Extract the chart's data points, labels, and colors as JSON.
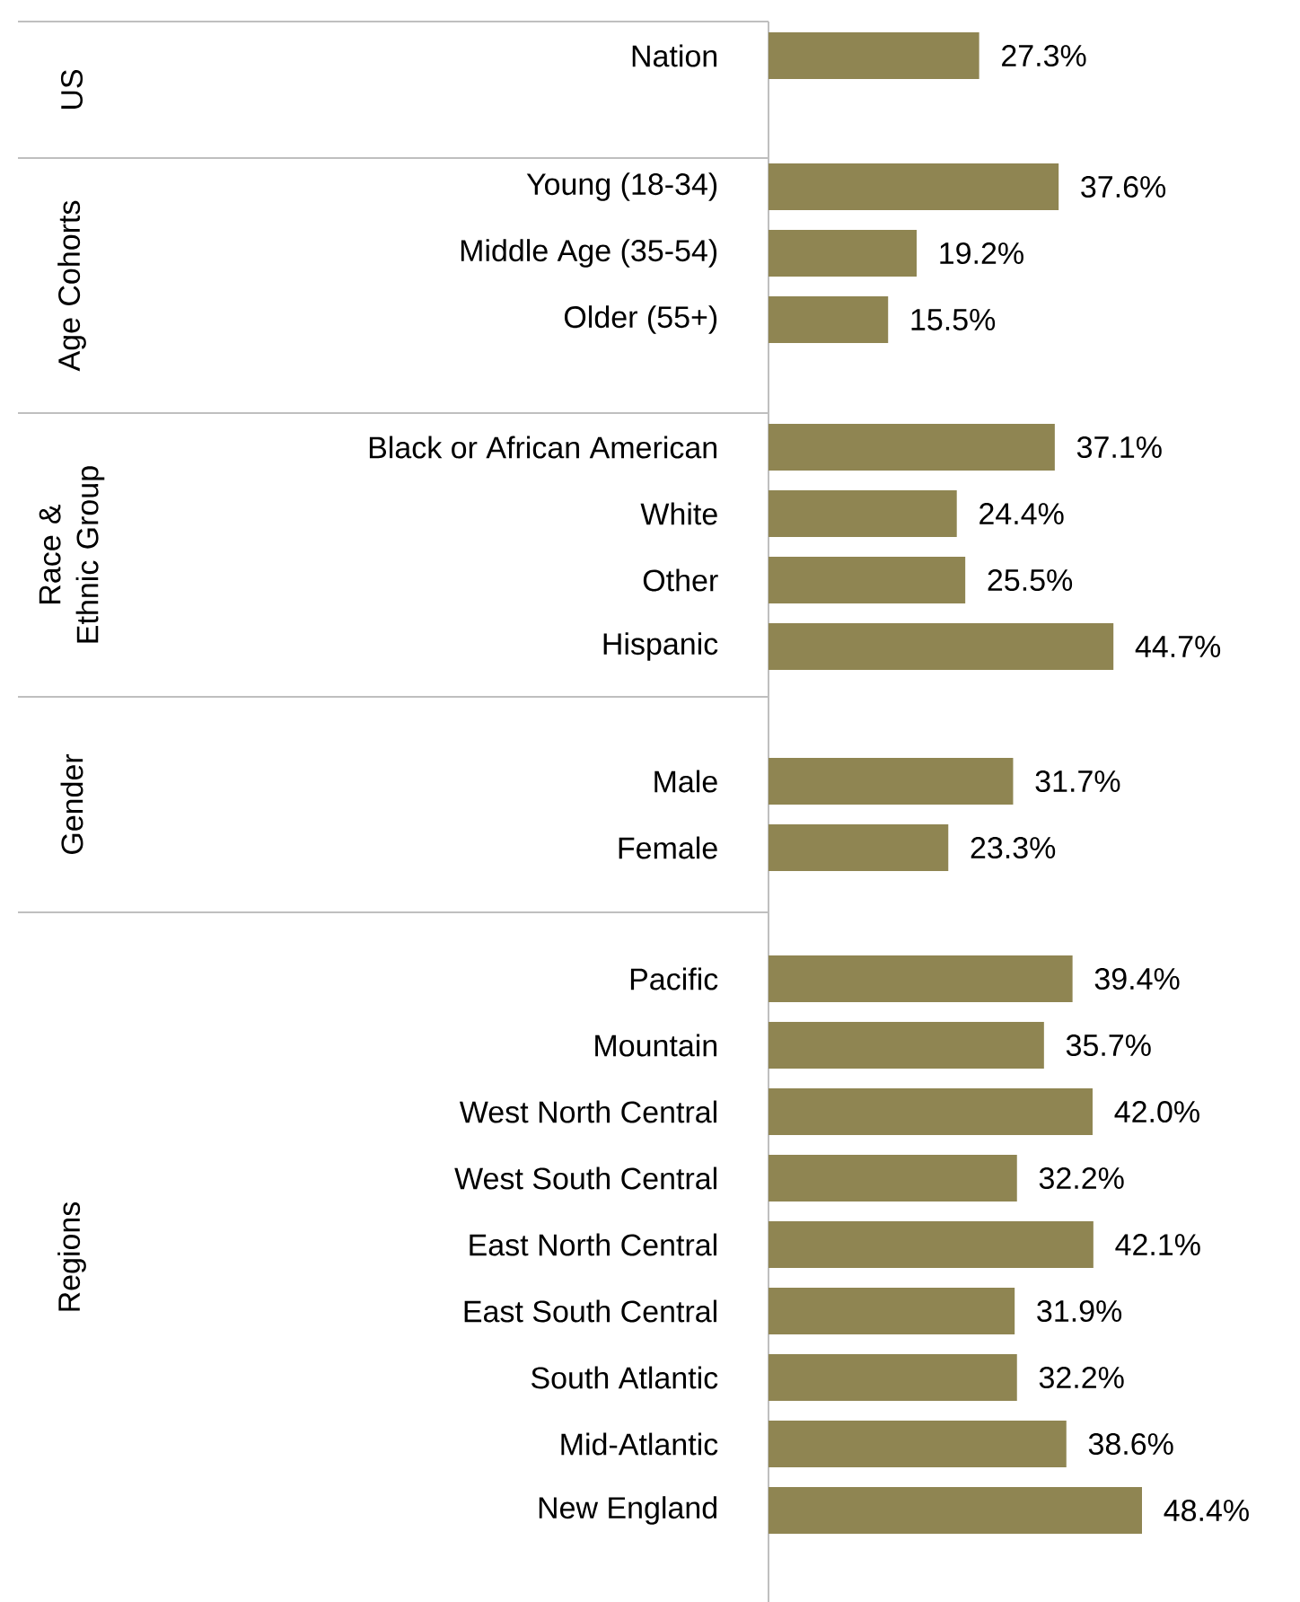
{
  "chart_data": [
    {
      "type": "bar",
      "orientation": "horizontal",
      "ylabel": "US",
      "categories": [
        "Nation"
      ],
      "values": [
        27.3
      ],
      "value_labels": [
        "27.3%"
      ],
      "color": "#8f8552"
    },
    {
      "type": "bar",
      "orientation": "horizontal",
      "ylabel": "Age Cohorts",
      "categories": [
        "Young (18-34)",
        "Middle Age (35-54)",
        "Older (55+)"
      ],
      "values": [
        37.6,
        19.2,
        15.5
      ],
      "value_labels": [
        "37.6%",
        "19.2%",
        "15.5%"
      ],
      "color": "#8f8552"
    },
    {
      "type": "bar",
      "orientation": "horizontal",
      "ylabel": "Race & Ethnic Group",
      "categories": [
        "Black or African American",
        "White",
        "Other",
        "Hispanic"
      ],
      "values": [
        37.1,
        24.4,
        25.5,
        44.7
      ],
      "value_labels": [
        "37.1%",
        "24.4%",
        "25.5%",
        "44.7%"
      ],
      "color": "#8f8552"
    },
    {
      "type": "bar",
      "orientation": "horizontal",
      "ylabel": "Gender",
      "categories": [
        "Male",
        "Female"
      ],
      "values": [
        31.7,
        23.3
      ],
      "value_labels": [
        "31.7%",
        "23.3%"
      ],
      "color": "#8f8552"
    },
    {
      "type": "bar",
      "orientation": "horizontal",
      "ylabel": "Regions",
      "categories": [
        "Pacific",
        "Mountain",
        "West North Central",
        "West South Central",
        "East North Central",
        "East South Central",
        "South Atlantic",
        "Mid-Atlantic",
        "New England"
      ],
      "values": [
        39.4,
        35.7,
        42.0,
        32.2,
        42.1,
        31.9,
        32.2,
        38.6,
        48.4
      ],
      "value_labels": [
        "39.4%",
        "35.7%",
        "42.0%",
        "32.2%",
        "42.1%",
        "31.9%",
        "32.2%",
        "38.6%",
        "48.4%"
      ],
      "color": "#8f8552"
    }
  ]
}
